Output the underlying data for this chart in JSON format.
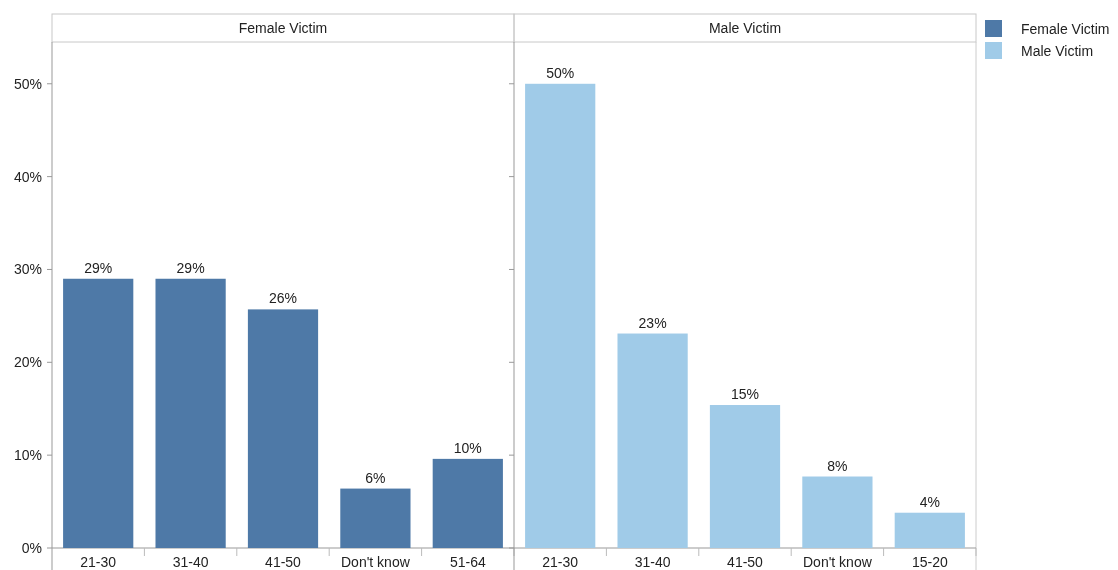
{
  "chart_data": [
    {
      "type": "bar",
      "title": "Female Victim",
      "categories": [
        "21-30",
        "31-40",
        "41-50",
        "Don't know",
        "51-64"
      ],
      "series": [
        {
          "name": "Female Victim",
          "color": "#4e79a7",
          "values": [
            29.0,
            29.0,
            25.7,
            6.4,
            9.6
          ],
          "value_labels": [
            "29%",
            "29%",
            "26%",
            "6%",
            "10%"
          ]
        }
      ],
      "ylim": [
        0,
        54.5
      ],
      "yticks": [
        {
          "value": 0,
          "label": "0%"
        },
        {
          "value": 10,
          "label": "10%"
        },
        {
          "value": 20,
          "label": "20%"
        },
        {
          "value": 30,
          "label": "30%"
        },
        {
          "value": 40,
          "label": "40%"
        },
        {
          "value": 50,
          "label": "50%"
        }
      ],
      "legend": "right"
    },
    {
      "type": "bar",
      "title": "Male Victim",
      "categories": [
        "21-30",
        "31-40",
        "41-50",
        "Don't know",
        "15-20"
      ],
      "series": [
        {
          "name": "Male Victim",
          "color": "#a0cbe8",
          "values": [
            50.0,
            23.1,
            15.4,
            7.7,
            3.8
          ],
          "value_labels": [
            "50%",
            "23%",
            "15%",
            "8%",
            "4%"
          ]
        }
      ],
      "ylim": [
        0,
        54.5
      ],
      "yticks": [
        {
          "value": 0,
          "label": null
        },
        {
          "value": 10,
          "label": null
        },
        {
          "value": 20,
          "label": null
        },
        {
          "value": 30,
          "label": null
        },
        {
          "value": 40,
          "label": null
        },
        {
          "value": 50,
          "label": null
        }
      ],
      "tick_labels": "x",
      "legend": "right"
    }
  ]
}
